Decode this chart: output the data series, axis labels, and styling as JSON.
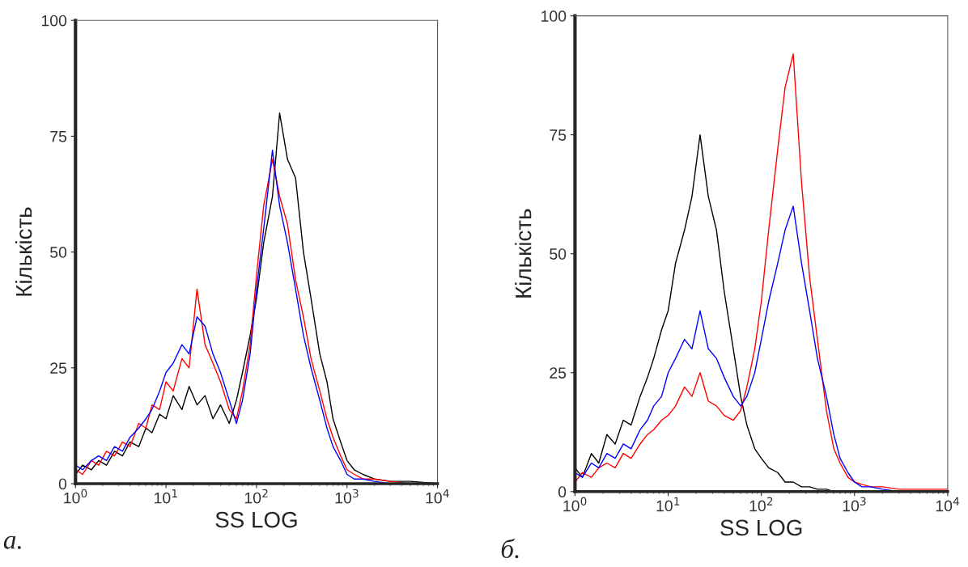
{
  "chart_data": [
    {
      "type": "line",
      "xlabel": "SS LOG",
      "ylabel": "Кількість",
      "log": "x",
      "grid": false,
      "xlim": [
        1,
        10000
      ],
      "ylim": [
        0,
        100
      ],
      "xticks": [
        {
          "value": 1,
          "label": "10$^{0}$"
        },
        {
          "value": 10,
          "label": "10$^{1}$"
        },
        {
          "value": 100,
          "label": "10$^{2}$"
        },
        {
          "value": 1000,
          "label": "10$^{3}$"
        },
        {
          "value": 10000,
          "label": "10$^{4}$"
        }
      ],
      "yticks": [
        0,
        25,
        50,
        75,
        100
      ],
      "annotations": [
        "а."
      ],
      "x": [
        1,
        1.2,
        1.5,
        1.8,
        2.2,
        2.7,
        3.3,
        4,
        5,
        6,
        7,
        8.5,
        10,
        12,
        15,
        18,
        22,
        27,
        33,
        40,
        50,
        60,
        70,
        85,
        100,
        120,
        150,
        180,
        220,
        270,
        330,
        400,
        500,
        600,
        700,
        850,
        1000,
        1200,
        1500,
        2000,
        3000,
        5000,
        10000
      ],
      "series": [
        {
          "color": "#000000",
          "values": [
            2,
            4,
            3,
            5,
            4,
            7,
            6,
            9,
            8,
            12,
            11,
            15,
            14,
            19,
            16,
            21,
            17,
            19,
            14,
            17,
            13,
            18,
            24,
            32,
            40,
            52,
            62,
            80,
            70,
            66,
            50,
            40,
            28,
            22,
            14,
            9,
            5,
            3,
            2,
            1,
            0.5,
            0.5,
            0
          ]
        },
        {
          "color": "#ff0000",
          "values": [
            3,
            2,
            5,
            4,
            7,
            6,
            9,
            8,
            13,
            12,
            17,
            16,
            22,
            20,
            27,
            25,
            42,
            30,
            26,
            22,
            16,
            14,
            20,
            30,
            45,
            60,
            70,
            62,
            56,
            44,
            36,
            27,
            20,
            14,
            10,
            6,
            3,
            2,
            1,
            1,
            0.5,
            0,
            0
          ]
        },
        {
          "color": "#0000ff",
          "values": [
            4,
            3,
            5,
            6,
            5,
            8,
            7,
            10,
            12,
            14,
            16,
            20,
            24,
            26,
            30,
            28,
            36,
            34,
            28,
            24,
            18,
            13,
            18,
            28,
            42,
            55,
            72,
            60,
            52,
            42,
            32,
            25,
            18,
            12,
            8,
            5,
            2,
            1,
            1,
            0.5,
            0,
            null,
            null
          ]
        }
      ]
    },
    {
      "type": "line",
      "xlabel": "SS LOG",
      "ylabel": "Кількість",
      "log": "x",
      "grid": false,
      "xlim": [
        1,
        10000
      ],
      "ylim": [
        0,
        100
      ],
      "xticks": [
        {
          "value": 1,
          "label": "10$^{0}$"
        },
        {
          "value": 10,
          "label": "10$^{1}$"
        },
        {
          "value": 100,
          "label": "10$^{2}$"
        },
        {
          "value": 1000,
          "label": "10$^{3}$"
        },
        {
          "value": 10000,
          "label": "10$^{4}$"
        }
      ],
      "yticks": [
        0,
        25,
        50,
        75,
        100
      ],
      "annotations": [
        "б."
      ],
      "x": [
        1,
        1.2,
        1.5,
        1.8,
        2.2,
        2.7,
        3.3,
        4,
        5,
        6,
        7,
        8.5,
        10,
        12,
        15,
        18,
        22,
        27,
        33,
        40,
        50,
        60,
        70,
        85,
        100,
        120,
        150,
        180,
        220,
        270,
        330,
        400,
        500,
        600,
        700,
        850,
        1000,
        1200,
        1500,
        2000,
        3000,
        5000,
        10000
      ],
      "series": [
        {
          "color": "#000000",
          "values": [
            5,
            3,
            8,
            6,
            12,
            10,
            15,
            14,
            20,
            24,
            28,
            34,
            38,
            48,
            55,
            62,
            75,
            62,
            55,
            42,
            30,
            20,
            14,
            9,
            7,
            5,
            4,
            2,
            2,
            1,
            1,
            0.5,
            0.5,
            0,
            0,
            0,
            0,
            0,
            0,
            0,
            0,
            0,
            0
          ]
        },
        {
          "color": "#ff0000",
          "values": [
            2,
            4,
            3,
            5,
            6,
            5,
            8,
            7,
            10,
            12,
            13,
            15,
            16,
            18,
            22,
            20,
            25,
            19,
            18,
            16,
            15,
            17,
            22,
            30,
            40,
            55,
            72,
            85,
            92,
            65,
            45,
            32,
            17,
            9,
            6,
            3,
            2,
            1.5,
            1,
            1,
            0.5,
            0.5,
            0.5
          ]
        },
        {
          "color": "#0000ff",
          "values": [
            4,
            3,
            6,
            5,
            8,
            7,
            10,
            9,
            13,
            15,
            18,
            20,
            25,
            28,
            32,
            30,
            38,
            30,
            28,
            24,
            20,
            18,
            20,
            25,
            32,
            40,
            48,
            55,
            60,
            48,
            38,
            28,
            20,
            12,
            7,
            4,
            2,
            1,
            1,
            0.5,
            0,
            0,
            0
          ]
        }
      ]
    }
  ]
}
